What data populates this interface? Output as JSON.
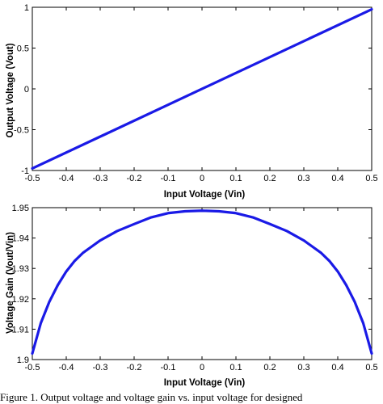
{
  "caption": "Figure 1. Output voltage and voltage gain vs. input voltage for designed",
  "chart_data": [
    {
      "type": "line",
      "xlabel": "Input Voltage (Vin)",
      "ylabel": "Output Voltage (Vout)",
      "xlim": [
        -0.5,
        0.5
      ],
      "ylim": [
        -1,
        1
      ],
      "xticks": [
        "-0.5",
        "-0.4",
        "-0.3",
        "-0.2",
        "-0.1",
        "0",
        "0.1",
        "0.2",
        "0.3",
        "0.4",
        "0.5"
      ],
      "yticks": [
        "-1",
        "-0.5",
        "0",
        "0.5",
        "1"
      ],
      "line_color": "#1a1ae6",
      "series": [
        {
          "x": [
            -0.5,
            0.5
          ],
          "y": [
            -0.975,
            0.975
          ]
        }
      ]
    },
    {
      "type": "line",
      "xlabel": "Input Voltage (Vin)",
      "ylabel": "Voltage Gain (Vout/Vin)",
      "xlim": [
        -0.5,
        0.5
      ],
      "ylim": [
        1.9,
        1.95
      ],
      "xticks": [
        "-0.5",
        "-0.4",
        "-0.3",
        "-0.2",
        "-0.1",
        "0",
        "0.1",
        "0.2",
        "0.3",
        "0.4",
        "0.5"
      ],
      "yticks": [
        "1.9",
        "1.91",
        "1.92",
        "1.93",
        "1.94",
        "1.95"
      ],
      "line_color": "#1a1ae6",
      "series": [
        {
          "x": [
            -0.5,
            -0.475,
            -0.45,
            -0.425,
            -0.4,
            -0.375,
            -0.35,
            -0.325,
            -0.3,
            -0.25,
            -0.2,
            -0.15,
            -0.1,
            -0.05,
            0,
            0.05,
            0.1,
            0.15,
            0.2,
            0.25,
            0.3,
            0.325,
            0.35,
            0.375,
            0.4,
            0.425,
            0.45,
            0.475,
            0.5
          ],
          "y": [
            1.902,
            1.912,
            1.919,
            1.9245,
            1.929,
            1.9325,
            1.9352,
            1.9372,
            1.9392,
            1.9423,
            1.9446,
            1.9468,
            1.9482,
            1.9488,
            1.949,
            1.9488,
            1.9482,
            1.9468,
            1.9446,
            1.9423,
            1.9392,
            1.9372,
            1.9352,
            1.9325,
            1.929,
            1.9245,
            1.919,
            1.912,
            1.902
          ]
        }
      ]
    }
  ]
}
